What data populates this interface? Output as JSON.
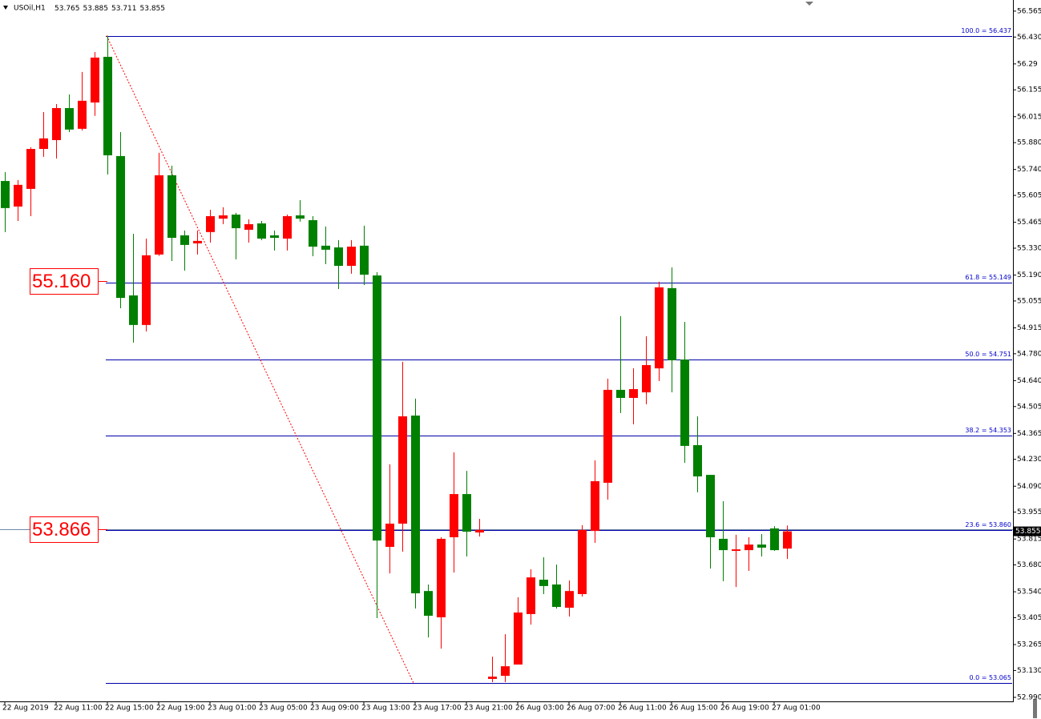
{
  "chart_data": {
    "type": "candlestick",
    "title": "USOil,H1",
    "up_color": "#ff0000",
    "down_color": "#008000",
    "categories": [
      "22 Aug 2019",
      null,
      null,
      null,
      "22 Aug 11:00",
      null,
      null,
      null,
      "22 Aug 15:00",
      null,
      null,
      null,
      "22 Aug 19:00",
      null,
      null,
      null,
      "23 Aug 01:00",
      null,
      null,
      null,
      "23 Aug 05:00",
      null,
      null,
      null,
      "23 Aug 09:00",
      null,
      null,
      null,
      "23 Aug 13:00",
      null,
      null,
      null,
      "23 Aug 17:00",
      null,
      null,
      null,
      "23 Aug 21:00",
      null,
      null,
      null,
      "26 Aug 03:00",
      null,
      null,
      null,
      "26 Aug 07:00",
      null,
      null,
      null,
      "26 Aug 11:00",
      null,
      null,
      null,
      "26 Aug 15:00",
      null,
      null,
      null,
      "26 Aug 19:00",
      null,
      null,
      null,
      "27 Aug 01:00",
      null
    ],
    "open": [
      55.68,
      55.547,
      55.639,
      55.847,
      55.893,
      56.06,
      55.952,
      56.089,
      56.327,
      55.81,
      55.084,
      54.93,
      55.297,
      55.71,
      55.397,
      55.355,
      55.414,
      55.484,
      55.505,
      55.426,
      55.459,
      55.397,
      55.38,
      55.501,
      55.476,
      55.343,
      55.334,
      55.238,
      55.343,
      55.188,
      53.774,
      53.895,
      54.458,
      53.544,
      53.407,
      53.824,
      54.049,
      53.849,
      53.086,
      53.102,
      53.161,
      53.424,
      53.603,
      53.578,
      53.457,
      53.528,
      53.857,
      54.108,
      54.592,
      54.55,
      54.579,
      54.704,
      55.122,
      54.75,
      54.304,
      54.149,
      53.816,
      53.753,
      53.757,
      53.786,
      53.87,
      53.765
    ],
    "high": [
      55.726,
      55.685,
      55.856,
      56.039,
      56.081,
      56.131,
      56.248,
      56.352,
      56.437,
      55.935,
      55.405,
      55.38,
      55.827,
      55.76,
      55.422,
      55.422,
      55.53,
      55.543,
      55.514,
      55.48,
      55.472,
      55.422,
      55.505,
      55.58,
      55.497,
      55.443,
      55.372,
      55.372,
      55.447,
      55.205,
      54.204,
      54.738,
      54.546,
      53.578,
      53.824,
      54.266,
      54.17,
      53.92,
      53.202,
      53.319,
      53.511,
      53.657,
      53.72,
      53.682,
      53.599,
      53.887,
      54.225,
      54.65,
      54.976,
      54.704,
      54.871,
      55.155,
      55.23,
      54.946,
      54.454,
      54.149,
      54.012,
      53.837,
      53.824,
      53.841,
      53.882,
      53.885
    ],
    "low": [
      55.414,
      55.472,
      55.497,
      55.806,
      55.797,
      55.935,
      55.943,
      56.019,
      55.714,
      55.017,
      54.838,
      54.896,
      55.29,
      55.263,
      55.213,
      55.297,
      55.359,
      55.455,
      55.272,
      55.359,
      55.372,
      55.318,
      55.318,
      55.468,
      55.288,
      55.247,
      55.117,
      55.197,
      55.138,
      53.403,
      53.636,
      53.749,
      53.453,
      53.302,
      53.244,
      53.64,
      53.724,
      53.828,
      53.069,
      53.069,
      53.161,
      53.369,
      53.528,
      53.453,
      53.411,
      53.515,
      53.795,
      54.02,
      54.471,
      54.412,
      54.517,
      54.638,
      54.579,
      54.212,
      54.058,
      53.661,
      53.595,
      53.565,
      53.649,
      53.724,
      53.753,
      53.711
    ],
    "close": [
      55.539,
      55.66,
      55.847,
      55.902,
      56.06,
      55.948,
      56.098,
      56.323,
      55.814,
      55.071,
      54.93,
      55.293,
      55.71,
      55.384,
      55.347,
      55.368,
      55.497,
      55.501,
      55.434,
      55.455,
      55.38,
      55.384,
      55.497,
      55.484,
      55.338,
      55.322,
      55.238,
      55.338,
      55.192,
      53.807,
      53.895,
      54.454,
      53.532,
      53.415,
      53.816,
      54.049,
      53.853,
      53.862,
      53.098,
      53.152,
      53.432,
      53.615,
      53.57,
      53.461,
      53.544,
      53.862,
      54.116,
      54.592,
      54.55,
      54.596,
      54.721,
      55.126,
      54.746,
      54.3,
      54.141,
      53.824,
      53.757,
      53.761,
      53.786,
      53.77,
      53.757,
      53.855
    ],
    "ylim": [
      52.969,
      56.623
    ],
    "yticks": [
      56.565,
      {
        "value": 56.43,
        "label": "56.430"
      },
      56.29,
      56.155,
      56.015,
      {
        "value": 55.88,
        "label": "55.880"
      },
      {
        "value": 55.74,
        "label": "55.740"
      },
      55.605,
      55.465,
      {
        "value": 55.33,
        "label": "55.330"
      },
      {
        "value": 55.19,
        "label": "55.190"
      },
      55.055,
      54.915,
      {
        "value": 54.78,
        "label": "54.780"
      },
      {
        "value": 54.64,
        "label": "54.640"
      },
      54.505,
      54.365,
      {
        "value": 54.23,
        "label": "54.230"
      },
      {
        "value": 54.09,
        "label": "54.090"
      },
      53.955,
      53.815,
      {
        "value": 53.68,
        "label": "53.680"
      },
      {
        "value": 53.54,
        "label": "53.540"
      },
      53.405,
      53.265,
      {
        "value": 53.13,
        "label": "53.130"
      },
      {
        "value": 52.99,
        "label": "52.990"
      }
    ],
    "fibonacci": [
      {
        "value": 56.437,
        "label": "100.0 = 56.437"
      },
      {
        "value": 55.149,
        "label": "61.8 = 55.149"
      },
      {
        "value": 54.751,
        "label": "50.0 = 54.751"
      },
      {
        "value": 54.353,
        "label": "38.2 = 54.353"
      },
      {
        "value": 53.86,
        "label": "23.6 = 53.860"
      },
      {
        "value": 53.065,
        "label": "0.0 = 53.065"
      }
    ],
    "price_labels": [
      {
        "value": 55.16,
        "label": "55.160"
      },
      {
        "value": 53.866,
        "label": "53.866"
      }
    ],
    "current_price": 53.855
  }
}
